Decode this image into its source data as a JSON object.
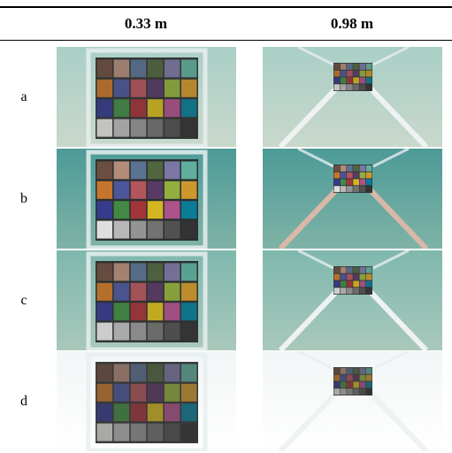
{
  "columns": [
    "0.33 m",
    "0.98 m"
  ],
  "rows": [
    "a",
    "b",
    "c",
    "d"
  ]
}
